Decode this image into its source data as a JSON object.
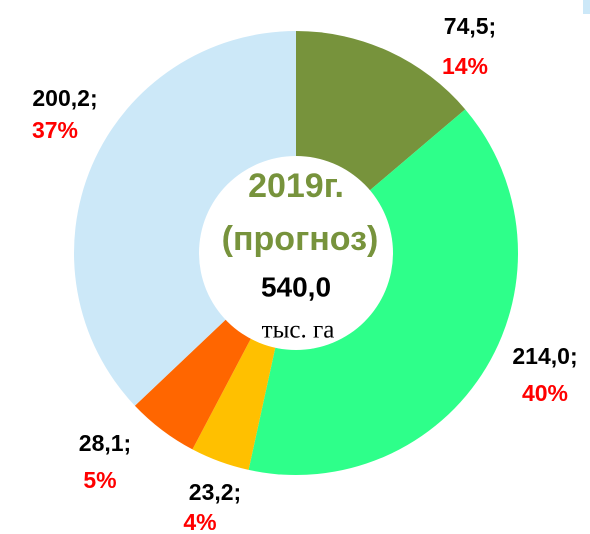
{
  "chart_data": {
    "type": "donut",
    "categories": [
      null,
      null,
      null,
      null,
      null
    ],
    "values": [
      74.5,
      214.0,
      23.2,
      28.1,
      200.2
    ],
    "value_labels": [
      "74,5;",
      "214,0;",
      "23,2;",
      "28,1;",
      "200,2;"
    ],
    "percentages": [
      14,
      40,
      4,
      5,
      37
    ],
    "percentage_labels": [
      "14%",
      "40%",
      "4%",
      "5%",
      "37%"
    ],
    "colors": [
      "#77933c",
      "#2eff8a",
      "#ffc000",
      "#ff6600",
      "#cce8f8"
    ],
    "center": {
      "year": "2019г.",
      "note": "(прогноз)",
      "total": "540,0",
      "unit": "тыс. га"
    }
  }
}
